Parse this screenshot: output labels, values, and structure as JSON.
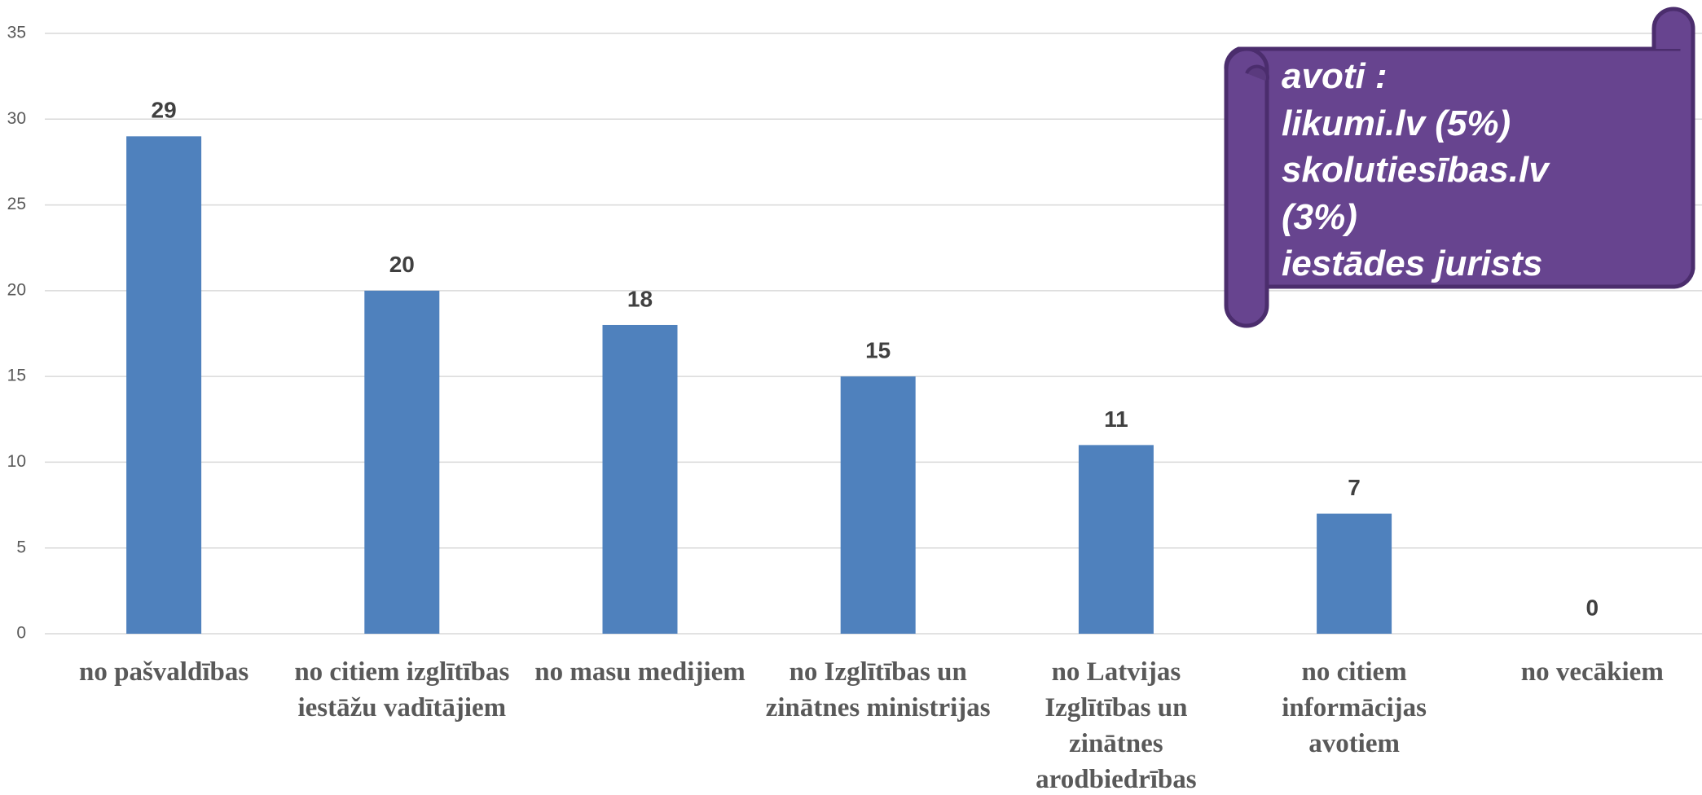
{
  "chart_data": {
    "type": "bar",
    "categories": [
      "no pašvaldības",
      "no citiem izglītības iestāžu vadītājiem",
      "no masu medijiem",
      "no Izglītības un zinātnes ministrijas",
      "no Latvijas Izglītības un zinātnes arodbiedrības",
      "no citiem informācijas avotiem",
      "no vecākiem"
    ],
    "values": [
      29,
      20,
      18,
      15,
      11,
      7,
      0
    ],
    "color": "#4f81bd",
    "ylim": [
      0,
      35
    ],
    "yticks": [
      0,
      5,
      10,
      15,
      20,
      25,
      30,
      35
    ],
    "grid": true,
    "annotation": [
      "avoti :",
      "likumi.lv (5%)",
      "skolutiesības.lv",
      "(3%)",
      "iestādes jurists"
    ]
  }
}
